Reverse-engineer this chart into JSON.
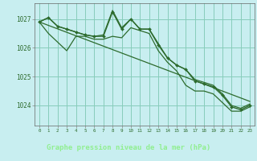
{
  "title": "Graphe pression niveau de la mer (hPa)",
  "bg_color": "#c8eef0",
  "plot_bg_color": "#c8eef0",
  "label_bg_color": "#2d5a2d",
  "grid_color": "#88ccbb",
  "line_color": "#2d6b2d",
  "marker_color": "#2d6b2d",
  "label_text_color": "#90ee90",
  "tick_color": "#2d6b2d",
  "ylim": [
    1023.3,
    1027.55
  ],
  "yticks": [
    1024,
    1025,
    1026,
    1027
  ],
  "xlim": [
    -0.5,
    23.5
  ],
  "xticks": [
    0,
    1,
    2,
    3,
    4,
    5,
    6,
    7,
    8,
    9,
    10,
    11,
    12,
    13,
    14,
    15,
    16,
    17,
    18,
    19,
    20,
    21,
    22,
    23
  ],
  "series": {
    "main": [
      1026.9,
      1027.05,
      1026.75,
      1026.65,
      1026.55,
      1026.45,
      1026.4,
      1026.4,
      1027.25,
      1026.65,
      1027.0,
      1026.65,
      1026.65,
      1026.1,
      1025.65,
      1025.4,
      1025.25,
      1024.85,
      1024.75,
      1024.65,
      1024.35,
      1023.95,
      1023.85,
      1024.0
    ],
    "line_min": [
      1026.9,
      1026.5,
      1026.2,
      1025.9,
      1026.4,
      1026.4,
      1026.3,
      1026.3,
      1026.4,
      1026.35,
      1026.7,
      1026.6,
      1026.5,
      1025.9,
      1025.5,
      1025.2,
      1024.7,
      1024.5,
      1024.5,
      1024.4,
      1024.1,
      1023.8,
      1023.8,
      1023.95
    ],
    "line_max": [
      1026.9,
      1027.05,
      1026.75,
      1026.65,
      1026.55,
      1026.45,
      1026.4,
      1026.45,
      1027.3,
      1026.7,
      1027.0,
      1026.65,
      1026.65,
      1026.15,
      1025.65,
      1025.4,
      1025.25,
      1024.9,
      1024.8,
      1024.7,
      1024.4,
      1024.0,
      1023.9,
      1024.05
    ],
    "diagonal": [
      1026.9,
      1026.78,
      1026.66,
      1026.54,
      1026.42,
      1026.3,
      1026.18,
      1026.06,
      1025.94,
      1025.82,
      1025.7,
      1025.58,
      1025.46,
      1025.34,
      1025.22,
      1025.1,
      1024.98,
      1024.86,
      1024.74,
      1024.62,
      1024.5,
      1024.38,
      1024.26,
      1024.14
    ]
  }
}
